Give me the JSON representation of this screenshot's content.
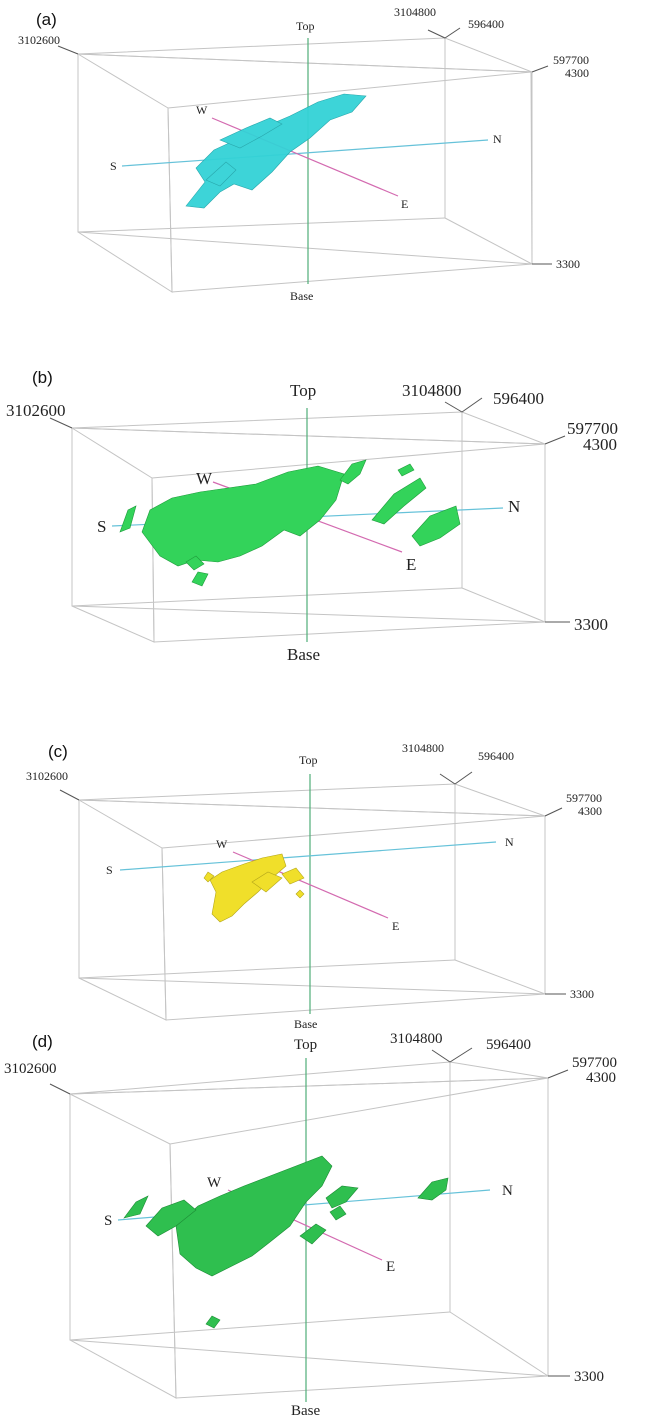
{
  "panels": [
    {
      "label": "(a)",
      "color": "#33d2d6",
      "top": "Top",
      "base": "Base",
      "north": "N",
      "south": "S",
      "west": "W",
      "east": "E",
      "coord_left": "3102600",
      "coord_back": "3104800",
      "coord_back_right": "596400",
      "coord_right": "597700",
      "elev_top": "4300",
      "elev_bottom": "3300"
    },
    {
      "label": "(b)",
      "color": "#33d35a",
      "top": "Top",
      "base": "Base",
      "north": "N",
      "south": "S",
      "west": "W",
      "east": "E",
      "coord_left": "3102600",
      "coord_back": "3104800",
      "coord_back_right": "596400",
      "coord_right": "597700",
      "elev_top": "4300",
      "elev_bottom": "3300"
    },
    {
      "label": "(c)",
      "color": "#f0df2a",
      "top": "Top",
      "base": "Base",
      "north": "N",
      "south": "S",
      "west": "W",
      "east": "E",
      "coord_left": "3102600",
      "coord_back": "3104800",
      "coord_back_right": "596400",
      "coord_right": "597700",
      "elev_top": "4300",
      "elev_bottom": "3300"
    },
    {
      "label": "(d)",
      "color": "#2fbf4f",
      "top": "Top",
      "base": "Base",
      "north": "N",
      "south": "S",
      "west": "W",
      "east": "E",
      "coord_left": "3102600",
      "coord_back": "3104800",
      "coord_back_right": "596400",
      "coord_right": "597700",
      "elev_top": "4300",
      "elev_bottom": "3300"
    }
  ]
}
